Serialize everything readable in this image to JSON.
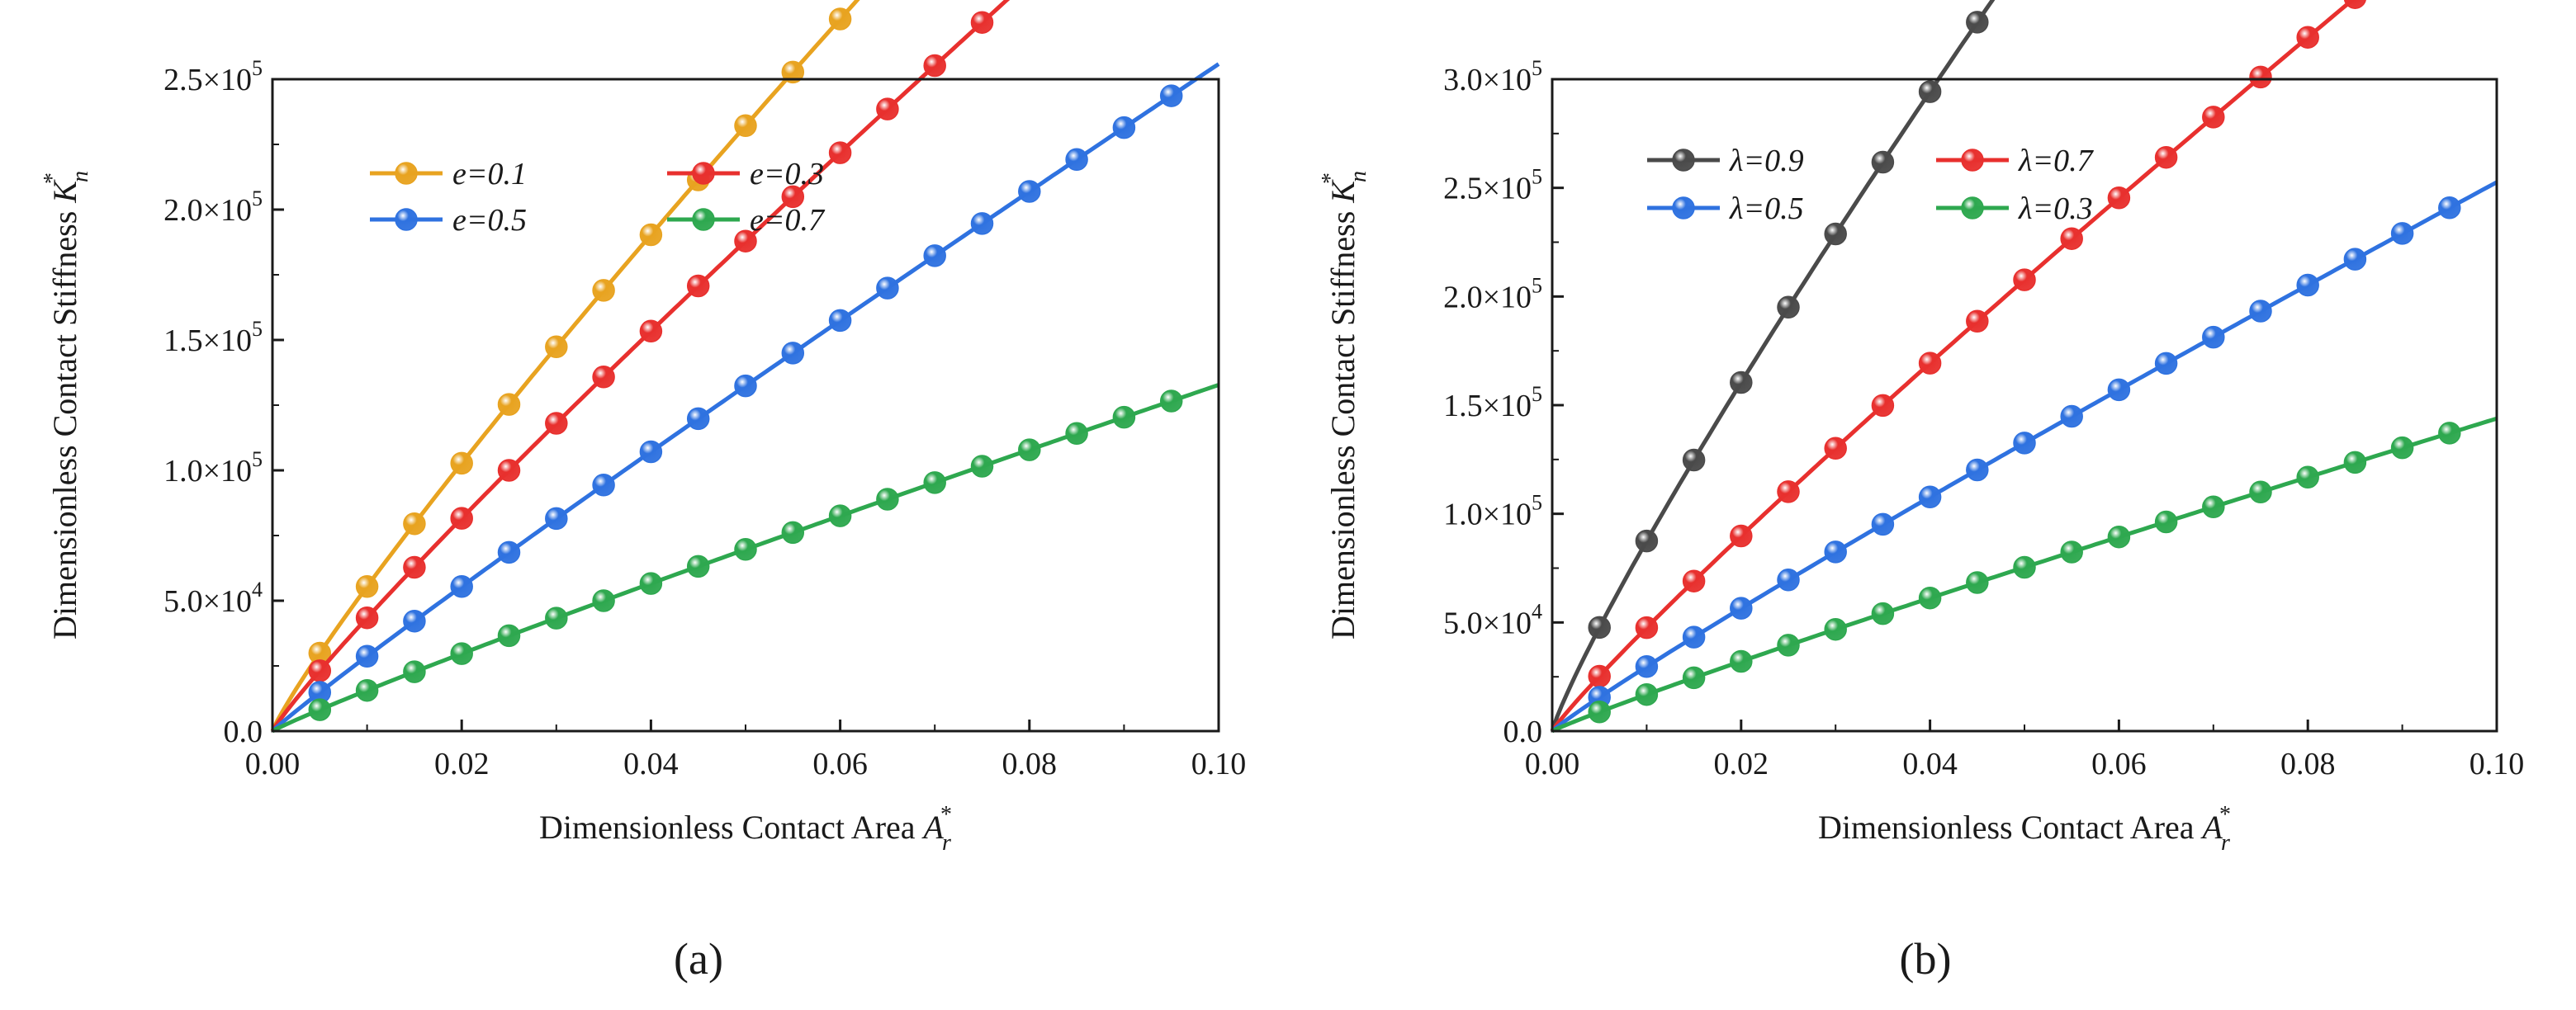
{
  "panels": [
    {
      "id": "a",
      "label": "(a)"
    },
    {
      "id": "b",
      "label": "(b)"
    }
  ],
  "chart_data": [
    {
      "type": "line",
      "panel": "(a)",
      "xlabel": "Dimensionless Contact Area",
      "xlabel_symbol": "A",
      "xlabel_sub": "r",
      "xlabel_sup": "*",
      "ylabel": "Dimensionless Contact Stiffness",
      "ylabel_symbol": "K",
      "ylabel_sub": "n",
      "ylabel_sup": "*",
      "xlim": [
        0,
        0.1
      ],
      "ylim": [
        0,
        250000
      ],
      "xticks": [
        0,
        0.02,
        0.04,
        0.06,
        0.08,
        0.1
      ],
      "xtick_labels": [
        "0.00",
        "0.02",
        "0.04",
        "0.06",
        "0.08",
        "0.10"
      ],
      "yticks": [
        0,
        50000,
        100000,
        150000,
        200000,
        250000
      ],
      "ytick_labels": [
        {
          "mantissa": "0.0",
          "exponent": ""
        },
        {
          "mantissa": "5.0×10",
          "exponent": "4"
        },
        {
          "mantissa": "1.0×10",
          "exponent": "5"
        },
        {
          "mantissa": "1.5×10",
          "exponent": "5"
        },
        {
          "mantissa": "2.0×10",
          "exponent": "5"
        },
        {
          "mantissa": "2.5×10",
          "exponent": "5"
        }
      ],
      "legend_position": "top-left",
      "series": [
        {
          "name": "e=0.1",
          "color": "#e8a320",
          "coef": 3340000,
          "power": 0.89
        },
        {
          "name": "e=0.3",
          "color": "#e8302e",
          "coef": 2870000,
          "power": 0.91
        },
        {
          "name": "e=0.5",
          "color": "#2f72e0",
          "coef": 2280000,
          "power": 0.95
        },
        {
          "name": "e=0.7",
          "color": "#2ea84f",
          "coef": 1130000,
          "power": 0.93
        }
      ]
    },
    {
      "type": "line",
      "panel": "(b)",
      "xlabel": "Dimensionless Contact Area",
      "xlabel_symbol": "A",
      "xlabel_sub": "r",
      "xlabel_sup": "*",
      "ylabel": "Dimensionless Contact Stiffness",
      "ylabel_symbol": "K",
      "ylabel_sub": "n",
      "ylabel_sup": "*",
      "xlim": [
        0,
        0.1
      ],
      "ylim": [
        0,
        300000
      ],
      "xticks": [
        0,
        0.02,
        0.04,
        0.06,
        0.08,
        0.1
      ],
      "xtick_labels": [
        "0.00",
        "0.02",
        "0.04",
        "0.06",
        "0.08",
        "0.10"
      ],
      "yticks": [
        0,
        50000,
        100000,
        150000,
        200000,
        250000,
        300000
      ],
      "ytick_labels": [
        {
          "mantissa": "0.0",
          "exponent": ""
        },
        {
          "mantissa": "5.0×10",
          "exponent": "4"
        },
        {
          "mantissa": "1.0×10",
          "exponent": "5"
        },
        {
          "mantissa": "1.5×10",
          "exponent": "5"
        },
        {
          "mantissa": "2.0×10",
          "exponent": "5"
        },
        {
          "mantissa": "2.5×10",
          "exponent": "5"
        },
        {
          "mantissa": "3.0×10",
          "exponent": "5"
        }
      ],
      "legend_position": "top-left",
      "series": [
        {
          "name": "λ=0.9",
          "color": "#4a4a4a",
          "coef": 4920000,
          "power": 0.875
        },
        {
          "name": "λ=0.7",
          "color": "#e8302e",
          "coef": 3220000,
          "power": 0.915
        },
        {
          "name": "λ=0.5",
          "color": "#2f72e0",
          "coef": 2150000,
          "power": 0.93
        },
        {
          "name": "λ=0.3",
          "color": "#2ea84f",
          "coef": 1230000,
          "power": 0.932
        }
      ],
      "marker_x": [
        0.005,
        0.01,
        0.015,
        0.02,
        0.025,
        0.03,
        0.035,
        0.04,
        0.045,
        0.05,
        0.055,
        0.06,
        0.065,
        0.07,
        0.075,
        0.08,
        0.085,
        0.09,
        0.095
      ]
    }
  ]
}
